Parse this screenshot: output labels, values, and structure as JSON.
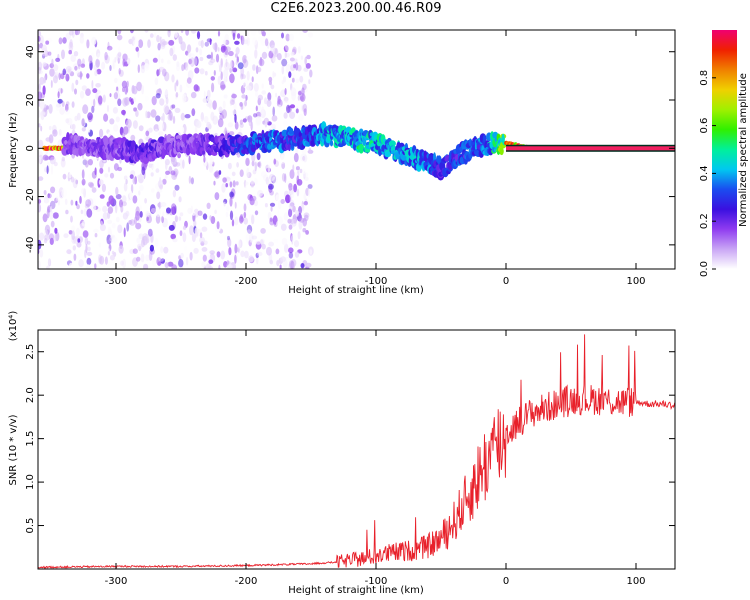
{
  "title": "C2E6.2023.200.00.46.R09",
  "chart_data": [
    {
      "type": "heatmap",
      "xlabel": "Height of straight line (km)",
      "ylabel": "Frequency (Hz)",
      "xlim": [
        -360,
        130
      ],
      "ylim": [
        -50,
        49
      ],
      "xticks": [
        -300,
        -200,
        -100,
        0,
        100
      ],
      "xtick_labels": [
        "-300",
        "-200",
        "-100",
        "0",
        "100"
      ],
      "yticks": [
        -40,
        -20,
        0,
        20,
        40
      ],
      "ytick_labels": [
        "-40",
        "-20",
        "0",
        "20",
        "40"
      ],
      "colorbar": {
        "label": "Normalized spectral amplitude",
        "range": [
          0,
          1
        ],
        "ticks": [
          0.0,
          0.2,
          0.4,
          0.6,
          0.8
        ],
        "tick_labels": [
          "0.0",
          "0.2",
          "0.4",
          "0.6",
          "0.8"
        ],
        "colormap": [
          "#ffffff",
          "#c9a5f5",
          "#8f3cf0",
          "#3a10e0",
          "#1a4cf0",
          "#00c8f0",
          "#00f09b",
          "#30f000",
          "#a0f000",
          "#f0d000",
          "#f08000",
          "#f02000",
          "#f00070"
        ]
      },
      "ridge": {
        "x": [
          -340,
          -320,
          -300,
          -280,
          -260,
          -240,
          -220,
          -200,
          -180,
          -160,
          -140,
          -130,
          -120,
          -110,
          -100,
          -90,
          -80,
          -70,
          -60,
          -50,
          -45,
          -40,
          -30,
          -20,
          -10,
          0,
          10,
          20,
          40,
          60,
          80,
          100,
          130
        ],
        "freq": [
          2,
          1,
          0,
          -2,
          1,
          2,
          1,
          2,
          3,
          4,
          6,
          5,
          4,
          3,
          2,
          0,
          -2,
          -4,
          -6,
          -8,
          -7,
          -4,
          -1,
          1,
          2,
          2,
          1,
          0,
          0,
          0,
          0,
          0,
          0
        ],
        "amplitude": [
          0.2,
          0.2,
          0.2,
          0.25,
          0.2,
          0.2,
          0.25,
          0.35,
          0.4,
          0.35,
          0.45,
          0.5,
          0.5,
          0.55,
          0.5,
          0.5,
          0.45,
          0.45,
          0.4,
          0.35,
          0.35,
          0.35,
          0.35,
          0.4,
          0.5,
          0.9,
          0.95,
          1.0,
          1.0,
          1.0,
          1.0,
          1.0,
          1.0
        ]
      },
      "noise_extent": {
        "x_from": -360,
        "x_to": -150,
        "freq_from": -50,
        "freq_to": 49
      }
    },
    {
      "type": "line",
      "xlabel": "Height of straight line (km)",
      "ylabel": "SNR (10 * v/v)",
      "y_multiplier_label": "(x10⁴)",
      "xlim": [
        -360,
        130
      ],
      "ylim": [
        0,
        2.75
      ],
      "xticks": [
        -300,
        -200,
        -100,
        0,
        100
      ],
      "xtick_labels": [
        "-300",
        "-200",
        "-100",
        "0",
        "100"
      ],
      "yticks": [
        0.5,
        1.0,
        1.5,
        2.0,
        2.5
      ],
      "ytick_labels": [
        "0.5",
        "1.0",
        "1.5",
        "2.0",
        "2.5"
      ],
      "color": "#e8202a",
      "series": [
        {
          "x": [
            -360,
            -300,
            -250,
            -200,
            -150,
            -130,
            -110,
            -100,
            -90,
            -80,
            -70,
            -60,
            -50,
            -40,
            -30,
            -20,
            -10,
            0,
            10,
            20,
            30,
            40,
            50,
            60,
            70,
            80,
            90,
            100,
            110,
            120,
            130
          ],
          "values": [
            0.02,
            0.03,
            0.03,
            0.04,
            0.06,
            0.08,
            0.12,
            0.15,
            0.18,
            0.2,
            0.22,
            0.26,
            0.35,
            0.55,
            0.8,
            1.1,
            1.35,
            1.55,
            1.7,
            1.8,
            1.85,
            1.9,
            1.95,
            1.95,
            1.95,
            1.93,
            1.92,
            1.92,
            1.9,
            1.9,
            1.88
          ]
        }
      ]
    }
  ]
}
